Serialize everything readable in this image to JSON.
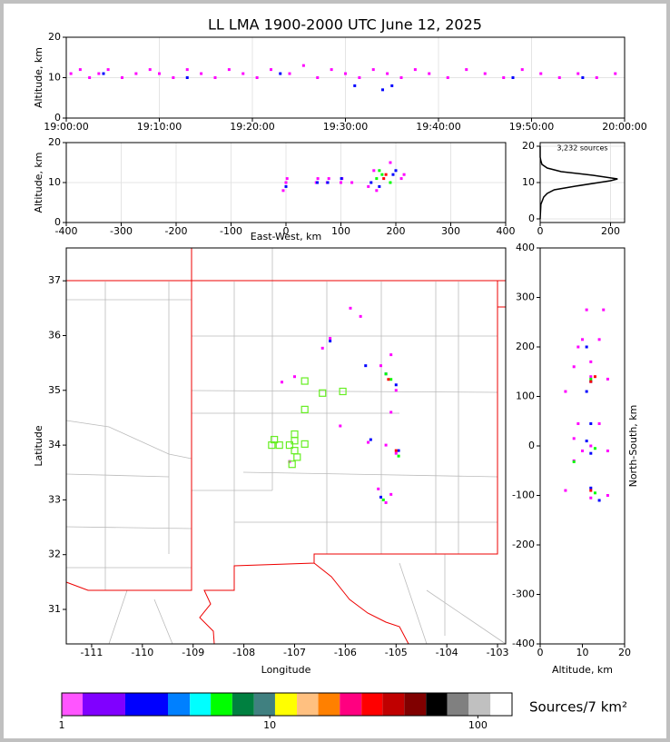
{
  "chart_data": [
    {
      "type": "scatter",
      "title": "LL LMA 1900-2000 UTC June 12, 2025",
      "ylabel": "Altitude, km",
      "xlim": [
        "19:00:00",
        "20:00:00"
      ],
      "xticks": [
        "19:00:00",
        "19:10:00",
        "19:20:00",
        "19:30:00",
        "19:40:00",
        "19:50:00",
        "20:00:00"
      ],
      "ylim": [
        0,
        20
      ],
      "yticks": [
        0,
        10,
        20
      ],
      "grid": true,
      "series": [
        {
          "color": "#ff00ff",
          "x": [
            "19:00:30",
            "19:01:30",
            "19:02:30",
            "19:03:30",
            "19:04:30",
            "19:06:00",
            "19:07:30",
            "19:09:00",
            "19:10:00",
            "19:11:30",
            "19:13:00",
            "19:14:30",
            "19:16:00",
            "19:17:30",
            "19:19:00",
            "19:20:30",
            "19:22:00",
            "19:24:00",
            "19:25:30",
            "19:27:00",
            "19:28:30",
            "19:30:00",
            "19:31:30",
            "19:33:00",
            "19:34:30",
            "19:36:00",
            "19:37:30",
            "19:39:00",
            "19:41:00",
            "19:43:00",
            "19:45:00",
            "19:47:00",
            "19:49:00",
            "19:51:00",
            "19:53:00",
            "19:55:00",
            "19:57:00",
            "19:59:00"
          ],
          "y": [
            11,
            12,
            10,
            11,
            12,
            10,
            11,
            12,
            11,
            10,
            12,
            11,
            10,
            12,
            11,
            10,
            12,
            11,
            13,
            10,
            12,
            11,
            10,
            12,
            11,
            10,
            12,
            11,
            10,
            12,
            11,
            10,
            12,
            11,
            10,
            11,
            10,
            11
          ]
        },
        {
          "color": "#0000ff",
          "x": [
            "19:04:00",
            "19:13:00",
            "19:23:00",
            "19:31:00",
            "19:34:00",
            "19:35:00",
            "19:48:00",
            "19:55:30"
          ],
          "y": [
            11,
            10,
            11,
            8,
            7,
            8,
            10,
            10
          ]
        }
      ]
    },
    {
      "type": "scatter",
      "xlabel": "East-West, km",
      "ylabel": "Altitude, km",
      "xlim": [
        -400,
        400
      ],
      "xticks": [
        -400,
        -300,
        -200,
        -100,
        0,
        100,
        200,
        300,
        400
      ],
      "ylim": [
        0,
        20
      ],
      "yticks": [
        0,
        10,
        20
      ],
      "grid": true,
      "series": [
        {
          "color": "#ff00ff",
          "x": [
            -5,
            0,
            2,
            55,
            58,
            75,
            78,
            100,
            102,
            120,
            150,
            160,
            165,
            210,
            215,
            190
          ],
          "y": [
            8,
            10,
            11,
            10,
            11,
            10,
            11,
            10,
            11,
            10,
            9,
            13,
            8,
            11,
            12,
            15
          ]
        },
        {
          "color": "#0000ff",
          "x": [
            0,
            57,
            76,
            101,
            155,
            170,
            195,
            200
          ],
          "y": [
            9,
            10,
            10,
            11,
            10,
            9,
            12,
            13
          ]
        },
        {
          "color": "#00ff00",
          "x": [
            165,
            175,
            190,
            170
          ],
          "y": [
            11,
            12,
            10,
            13
          ]
        },
        {
          "color": "#ff0000",
          "x": [
            178,
            182
          ],
          "y": [
            11,
            12
          ]
        }
      ]
    },
    {
      "type": "line",
      "annotation": "3,232 sources",
      "xlim": [
        0,
        240
      ],
      "xticks": [
        0,
        200
      ],
      "ylim": [
        -1,
        21
      ],
      "yticks": [
        0,
        10,
        20
      ],
      "grid": true,
      "series": [
        {
          "color": "#000000",
          "x": [
            0,
            2,
            10,
            20,
            40,
            100,
            200,
            220,
            150,
            60,
            20,
            5,
            2,
            0,
            0
          ],
          "y": [
            0,
            4,
            6,
            7,
            8,
            9,
            10.5,
            11,
            12,
            13,
            14,
            15,
            16,
            17,
            20
          ]
        }
      ]
    },
    {
      "type": "scatter",
      "xlabel": "Longitude",
      "ylabel": "Latitude",
      "xlim": [
        -111.5,
        -102.84
      ],
      "xticks": [
        -111,
        -110,
        -109,
        -108,
        -107,
        -106,
        -105,
        -104,
        -103
      ],
      "ylim": [
        30.37,
        37.6
      ],
      "yticks": [
        31,
        32,
        33,
        34,
        35,
        36,
        37
      ],
      "grid": false,
      "series": [
        {
          "color": "#ff00ff",
          "x": [
            -106.45,
            -106.3,
            -107.0,
            -105.9,
            -105.7,
            -105.1,
            -105.3,
            -105.1,
            -105.0,
            -105.55,
            -105.2,
            -105.0,
            -105.35,
            -105.2,
            -105.1,
            -107.1,
            -106.1,
            -107.25
          ],
          "y": [
            35.77,
            35.95,
            35.25,
            36.5,
            36.35,
            35.65,
            35.45,
            34.6,
            35.0,
            34.05,
            34.0,
            33.85,
            33.2,
            32.95,
            33.1,
            33.7,
            34.35,
            35.15
          ]
        },
        {
          "color": "#0000ff",
          "x": [
            -106.3,
            -105.2,
            -105.0,
            -105.5,
            -105.3,
            -104.95,
            -105.6
          ],
          "y": [
            35.9,
            35.3,
            35.1,
            34.1,
            33.05,
            33.9,
            35.45
          ]
        },
        {
          "color": "#00ff00",
          "x": [
            -105.1,
            -104.95,
            -105.25,
            -105.2
          ],
          "y": [
            35.2,
            33.8,
            33.0,
            35.3
          ]
        },
        {
          "color": "#ff0000",
          "x": [
            -105.15,
            -105.0
          ],
          "y": [
            35.2,
            33.9
          ]
        },
        {
          "color": "#66ee22",
          "marker": "square",
          "x": [
            -106.8,
            -106.45,
            -106.05,
            -106.8,
            -107.0,
            -107.1,
            -107.3,
            -107.4,
            -107.0,
            -106.8,
            -107.0,
            -106.95,
            -107.05,
            -107.45
          ],
          "y": [
            35.17,
            34.95,
            34.98,
            34.65,
            34.2,
            34.0,
            34.0,
            34.1,
            34.08,
            34.02,
            33.9,
            33.78,
            33.65,
            34.0
          ]
        }
      ]
    },
    {
      "type": "scatter",
      "xlabel": "Altitude, km",
      "ylabel": "North-South, km",
      "xlim": [
        0,
        20
      ],
      "xticks": [
        0,
        10,
        20
      ],
      "ylim": [
        -400,
        400
      ],
      "yticks": [
        -400,
        -300,
        -200,
        -100,
        0,
        100,
        200,
        300,
        400
      ],
      "grid": false,
      "series": [
        {
          "color": "#ff00ff",
          "x": [
            9,
            10,
            14,
            12,
            8,
            6,
            12,
            16,
            9,
            14,
            8,
            12,
            10,
            16,
            8,
            6,
            12,
            16,
            11,
            15
          ],
          "y": [
            200,
            215,
            215,
            170,
            160,
            110,
            140,
            135,
            45,
            45,
            15,
            0,
            -10,
            -10,
            -30,
            -90,
            -105,
            -100,
            275,
            275
          ]
        },
        {
          "color": "#0000ff",
          "x": [
            11,
            12,
            11,
            12,
            11,
            12,
            12,
            14
          ],
          "y": [
            200,
            130,
            110,
            45,
            10,
            -15,
            -85,
            -110
          ]
        },
        {
          "color": "#00ff00",
          "x": [
            12,
            13,
            8,
            13
          ],
          "y": [
            135,
            -5,
            -32,
            -95
          ]
        },
        {
          "color": "#ff0000",
          "x": [
            12,
            13,
            12
          ],
          "y": [
            130,
            140,
            -90
          ]
        }
      ]
    },
    {
      "type": "colorbar",
      "label": "Sources/7 km²",
      "scale": "log",
      "xlim": [
        1,
        146
      ],
      "xticks": [
        1,
        10,
        100
      ],
      "bounds": [
        1,
        1.26,
        2.02,
        3.24,
        4.13,
        5.2,
        6.6,
        8.4,
        10.6,
        13.5,
        17.1,
        21.7,
        27.6,
        34.8,
        44.3,
        56.4,
        71.3,
        90.4,
        115,
        146
      ],
      "colors": [
        "#ff55ff",
        "#8000ff",
        "#0000ff",
        "#0080ff",
        "#00ffff",
        "#00ff00",
        "#008040",
        "#408080",
        "#ffff00",
        "#ffc080",
        "#ff8000",
        "#ff0080",
        "#ff0000",
        "#c00000",
        "#800000",
        "#000000",
        "#808080",
        "#c0c0c0",
        "#ffffff"
      ]
    }
  ]
}
